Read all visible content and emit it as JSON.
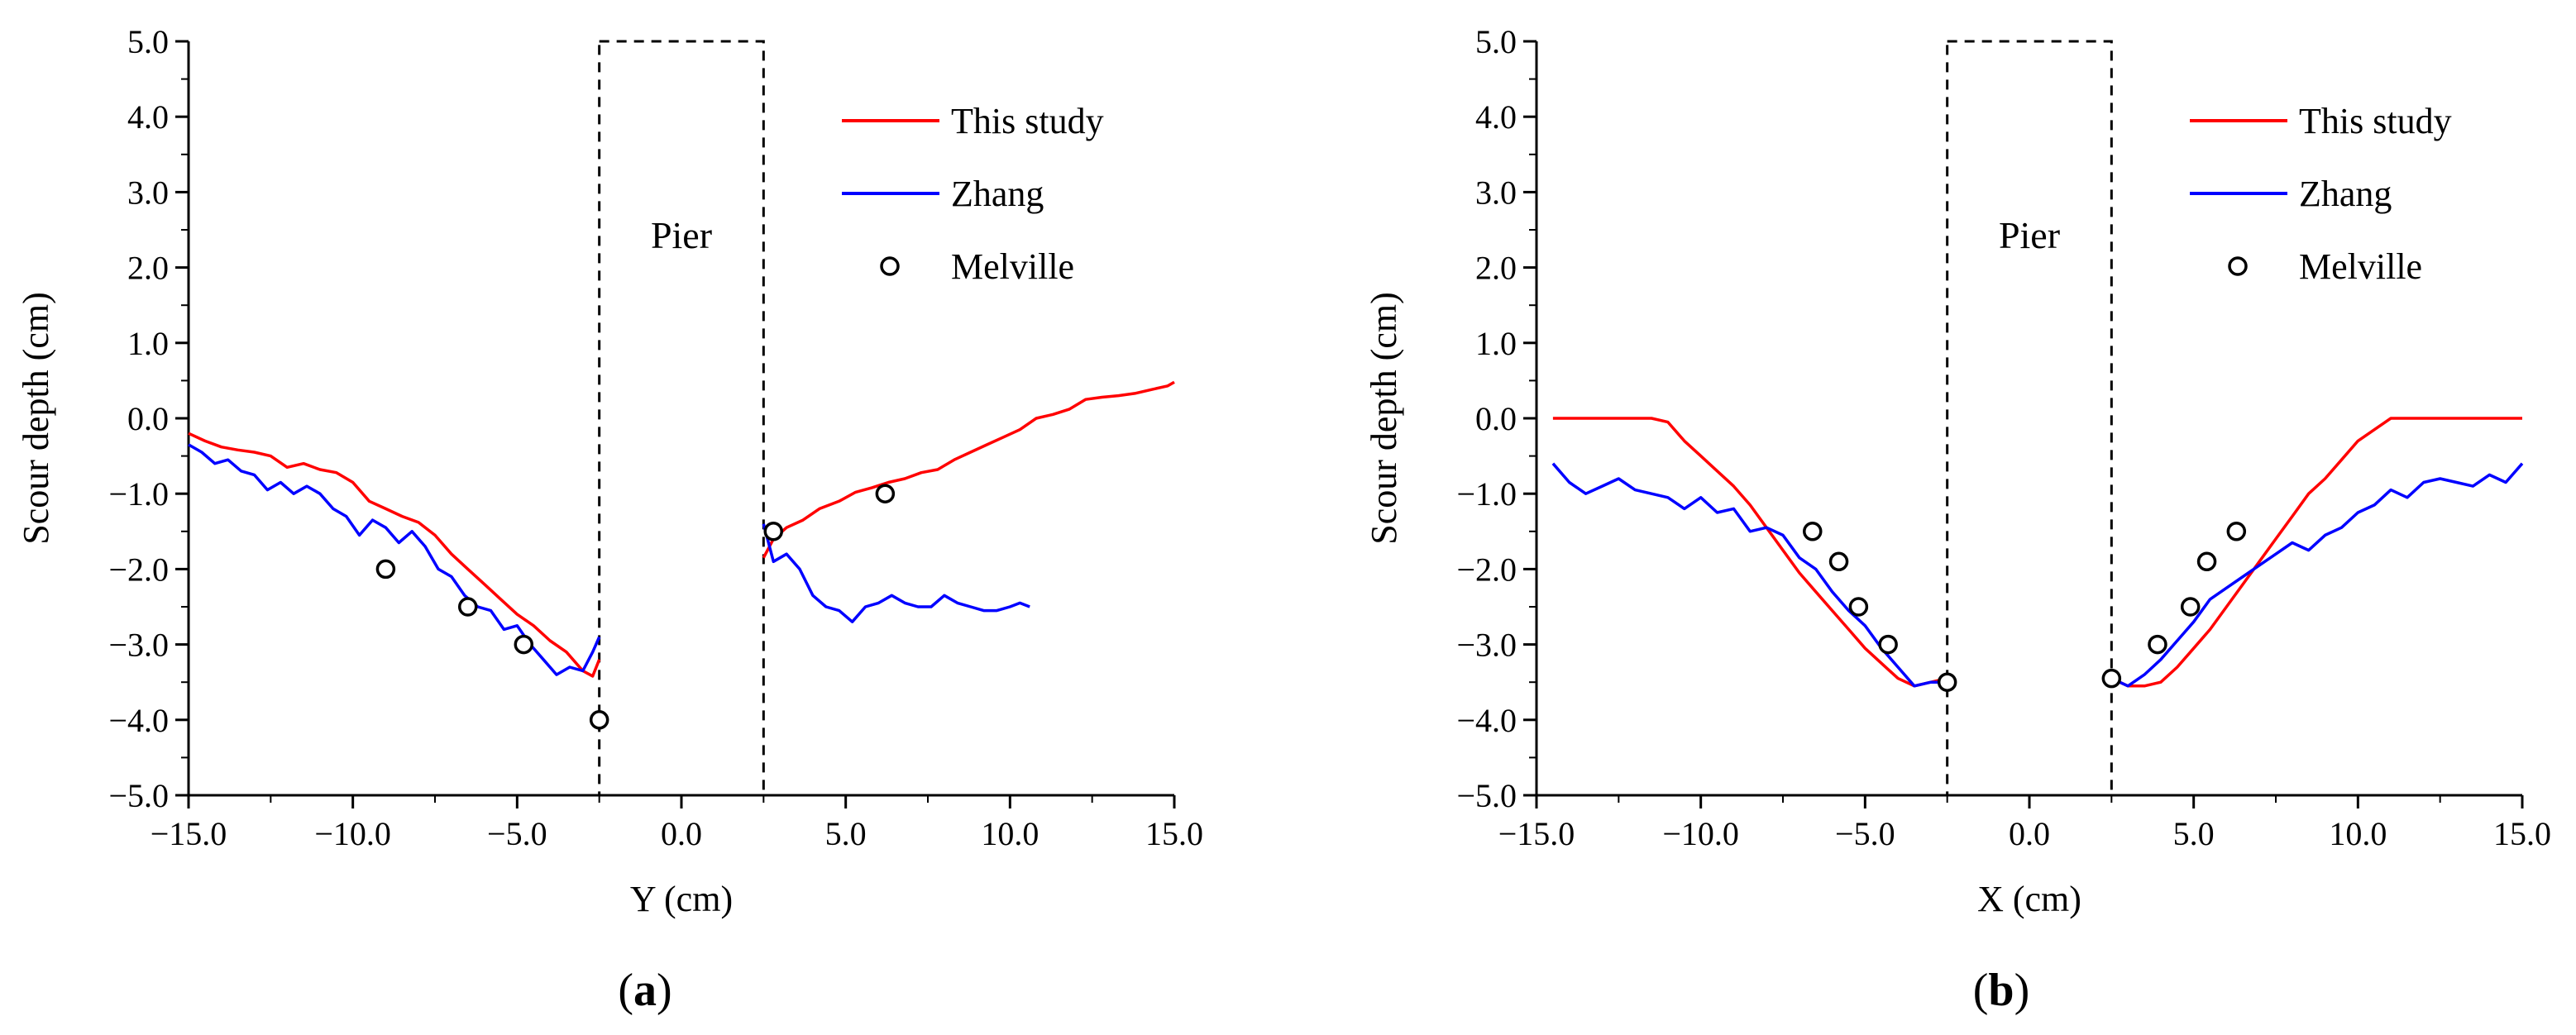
{
  "figure": {
    "panels": [
      "(a)",
      "(b)"
    ]
  },
  "colors": {
    "this_study": "#ff0000",
    "zhang": "#0000ff",
    "melville": "#000000",
    "axis": "#000000"
  },
  "chart_data": [
    {
      "type": "line",
      "panel_label_prefix": "(",
      "panel_label_letter": "a",
      "panel_label_suffix": ")",
      "xlabel": "Y (cm)",
      "ylabel": "Scour depth (cm)",
      "xlim": [
        -15,
        15
      ],
      "ylim": [
        -5,
        5
      ],
      "xticks": [
        -15,
        -10,
        -5,
        0,
        5,
        10,
        15
      ],
      "xtick_labels": [
        "−15.0",
        "−10.0",
        "−5.0",
        "0.0",
        "5.0",
        "10.0",
        "15.0"
      ],
      "yticks": [
        -5,
        -4,
        -3,
        -2,
        -1,
        0,
        1,
        2,
        3,
        4,
        5
      ],
      "ytick_labels": [
        "−5.0",
        "−4.0",
        "−3.0",
        "−2.0",
        "−1.0",
        "0.0",
        "1.0",
        "2.0",
        "3.0",
        "4.0",
        "5.0"
      ],
      "pier": {
        "label": "Pier",
        "x_range": [
          -2.5,
          2.5
        ],
        "y_range": [
          -5,
          5
        ]
      },
      "legend_position": "top-right",
      "legend": [
        "This study",
        "Zhang",
        "Melville"
      ],
      "series": [
        {
          "name": "This study",
          "kind": "line",
          "segments": [
            {
              "x": [
                -15,
                -14.5,
                -14,
                -13.5,
                -13,
                -12.5,
                -12,
                -11.5,
                -11,
                -10.5,
                -10,
                -9.5,
                -9,
                -8.5,
                -8,
                -7.5,
                -7,
                -6.5,
                -6,
                -5.5,
                -5,
                -4.5,
                -4,
                -3.5,
                -3,
                -2.7,
                -2.5
              ],
              "y": [
                -0.2,
                -0.3,
                -0.38,
                -0.42,
                -0.45,
                -0.5,
                -0.65,
                -0.6,
                -0.68,
                -0.72,
                -0.85,
                -1.1,
                -1.2,
                -1.3,
                -1.38,
                -1.55,
                -1.8,
                -2.0,
                -2.2,
                -2.4,
                -2.6,
                -2.75,
                -2.95,
                -3.1,
                -3.35,
                -3.42,
                -3.2
              ]
            },
            {
              "x": [
                2.5,
                2.8,
                3.2,
                3.7,
                4.2,
                4.8,
                5.3,
                5.8,
                6.3,
                6.8,
                7.3,
                7.8,
                8.3,
                8.8,
                9.3,
                9.8,
                10.3,
                10.8,
                11.3,
                11.8,
                12.3,
                12.8,
                13.3,
                13.8,
                14.3,
                14.8,
                15
              ],
              "y": [
                -1.85,
                -1.6,
                -1.45,
                -1.35,
                -1.2,
                -1.1,
                -0.98,
                -0.92,
                -0.85,
                -0.8,
                -0.72,
                -0.68,
                -0.55,
                -0.45,
                -0.35,
                -0.25,
                -0.15,
                0.0,
                0.05,
                0.12,
                0.25,
                0.28,
                0.3,
                0.33,
                0.38,
                0.43,
                0.48
              ]
            }
          ]
        },
        {
          "name": "Zhang",
          "kind": "line",
          "segments": [
            {
              "x": [
                -15,
                -14.6,
                -14.2,
                -13.8,
                -13.4,
                -13.0,
                -12.6,
                -12.2,
                -11.8,
                -11.4,
                -11.0,
                -10.6,
                -10.2,
                -9.8,
                -9.4,
                -9.0,
                -8.6,
                -8.2,
                -7.8,
                -7.4,
                -7.0,
                -6.6,
                -6.2,
                -5.8,
                -5.4,
                -5.0,
                -4.6,
                -4.2,
                -3.8,
                -3.4,
                -3.0,
                -2.7,
                -2.5
              ],
              "y": [
                -0.35,
                -0.45,
                -0.6,
                -0.55,
                -0.7,
                -0.75,
                -0.95,
                -0.85,
                -1.0,
                -0.9,
                -1.0,
                -1.2,
                -1.3,
                -1.55,
                -1.35,
                -1.45,
                -1.65,
                -1.5,
                -1.7,
                -2.0,
                -2.1,
                -2.35,
                -2.5,
                -2.55,
                -2.8,
                -2.75,
                -3.0,
                -3.2,
                -3.4,
                -3.3,
                -3.35,
                -3.1,
                -2.9
              ]
            },
            {
              "x": [
                2.5,
                2.8,
                3.2,
                3.6,
                4.0,
                4.4,
                4.8,
                5.2,
                5.6,
                6.0,
                6.4,
                6.8,
                7.2,
                7.6,
                8.0,
                8.4,
                8.8,
                9.2,
                9.6,
                10.0,
                10.3,
                10.6
              ],
              "y": [
                -1.4,
                -1.9,
                -1.8,
                -2.0,
                -2.35,
                -2.5,
                -2.55,
                -2.7,
                -2.5,
                -2.45,
                -2.35,
                -2.45,
                -2.5,
                -2.5,
                -2.35,
                -2.45,
                -2.5,
                -2.55,
                -2.55,
                -2.5,
                -2.45,
                -2.5
              ]
            }
          ]
        },
        {
          "name": "Melville",
          "kind": "scatter",
          "x": [
            -9.0,
            -6.5,
            -4.8,
            -2.5,
            2.8,
            6.2
          ],
          "y": [
            -2.0,
            -2.5,
            -3.0,
            -4.0,
            -1.5,
            -1.0
          ]
        }
      ]
    },
    {
      "type": "line",
      "panel_label_prefix": "(",
      "panel_label_letter": "b",
      "panel_label_suffix": ")",
      "xlabel": "X (cm)",
      "ylabel": "Scour depth (cm)",
      "xlim": [
        -15,
        15
      ],
      "ylim": [
        -5,
        5
      ],
      "xticks": [
        -15,
        -10,
        -5,
        0,
        5,
        10,
        15
      ],
      "xtick_labels": [
        "−15.0",
        "−10.0",
        "−5.0",
        "0.0",
        "5.0",
        "10.0",
        "15.0"
      ],
      "yticks": [
        -5,
        -4,
        -3,
        -2,
        -1,
        0,
        1,
        2,
        3,
        4,
        5
      ],
      "ytick_labels": [
        "−5.0",
        "−4.0",
        "−3.0",
        "−2.0",
        "−1.0",
        "0.0",
        "1.0",
        "2.0",
        "3.0",
        "4.0",
        "5.0"
      ],
      "pier": {
        "label": "Pier",
        "x_range": [
          -2.5,
          2.5
        ],
        "y_range": [
          -5,
          5
        ]
      },
      "legend_position": "top-right",
      "legend": [
        "This study",
        "Zhang",
        "Melville"
      ],
      "series": [
        {
          "name": "This study",
          "kind": "line",
          "segments": [
            {
              "x": [
                -14.5,
                -14,
                -13,
                -12,
                -11.5,
                -11,
                -10.5,
                -10,
                -9.5,
                -9,
                -8.5,
                -8,
                -7.5,
                -7,
                -6.5,
                -6,
                -5.5,
                -5,
                -4.5,
                -4,
                -3.5,
                -3,
                -2.5
              ],
              "y": [
                0,
                0,
                0,
                0,
                0,
                -0.05,
                -0.3,
                -0.5,
                -0.7,
                -0.9,
                -1.15,
                -1.45,
                -1.75,
                -2.05,
                -2.3,
                -2.55,
                -2.8,
                -3.05,
                -3.25,
                -3.45,
                -3.55,
                -3.5,
                -3.45
              ]
            },
            {
              "x": [
                2.5,
                3.0,
                3.5,
                4.0,
                4.5,
                5.0,
                5.5,
                6.0,
                6.5,
                7.0,
                7.5,
                8.0,
                8.5,
                9.0,
                9.5,
                10.0,
                10.5,
                11.0,
                11.5,
                12,
                13,
                14,
                15
              ],
              "y": [
                -3.45,
                -3.55,
                -3.55,
                -3.5,
                -3.3,
                -3.05,
                -2.8,
                -2.5,
                -2.2,
                -1.9,
                -1.6,
                -1.3,
                -1.0,
                -0.8,
                -0.55,
                -0.3,
                -0.15,
                0,
                0,
                0,
                0,
                0,
                0
              ]
            }
          ]
        },
        {
          "name": "Zhang",
          "kind": "line",
          "segments": [
            {
              "x": [
                -14.5,
                -14.0,
                -13.5,
                -13.0,
                -12.5,
                -12.0,
                -11.5,
                -11.0,
                -10.5,
                -10.0,
                -9.5,
                -9.0,
                -8.5,
                -8.0,
                -7.5,
                -7.0,
                -6.5,
                -6.0,
                -5.5,
                -5.0,
                -4.5,
                -4.0,
                -3.5,
                -3.0,
                -2.5
              ],
              "y": [
                -0.6,
                -0.85,
                -1.0,
                -0.9,
                -0.8,
                -0.95,
                -1.0,
                -1.05,
                -1.2,
                -1.05,
                -1.25,
                -1.2,
                -1.5,
                -1.45,
                -1.55,
                -1.85,
                -2.0,
                -2.3,
                -2.55,
                -2.75,
                -3.05,
                -3.3,
                -3.55,
                -3.5,
                -3.5
              ]
            },
            {
              "x": [
                2.5,
                3.0,
                3.5,
                4.0,
                4.5,
                5.0,
                5.5,
                6.0,
                6.5,
                7.0,
                7.5,
                8.0,
                8.5,
                9.0,
                9.5,
                10.0,
                10.5,
                11.0,
                11.5,
                12.0,
                12.5,
                13.0,
                13.5,
                14.0,
                14.5,
                15.0
              ],
              "y": [
                -3.45,
                -3.55,
                -3.4,
                -3.2,
                -2.95,
                -2.7,
                -2.4,
                -2.25,
                -2.1,
                -1.95,
                -1.8,
                -1.65,
                -1.75,
                -1.55,
                -1.45,
                -1.25,
                -1.15,
                -0.95,
                -1.05,
                -0.85,
                -0.8,
                -0.85,
                -0.9,
                -0.75,
                -0.85,
                -0.6
              ]
            }
          ]
        },
        {
          "name": "Melville",
          "kind": "scatter",
          "x": [
            -6.6,
            -5.8,
            -5.2,
            -4.3,
            -2.5,
            2.5,
            3.9,
            4.9,
            5.4,
            6.3
          ],
          "y": [
            -1.5,
            -1.9,
            -2.5,
            -3.0,
            -3.5,
            -3.45,
            -3.0,
            -2.5,
            -1.9,
            -1.5
          ]
        }
      ]
    }
  ]
}
